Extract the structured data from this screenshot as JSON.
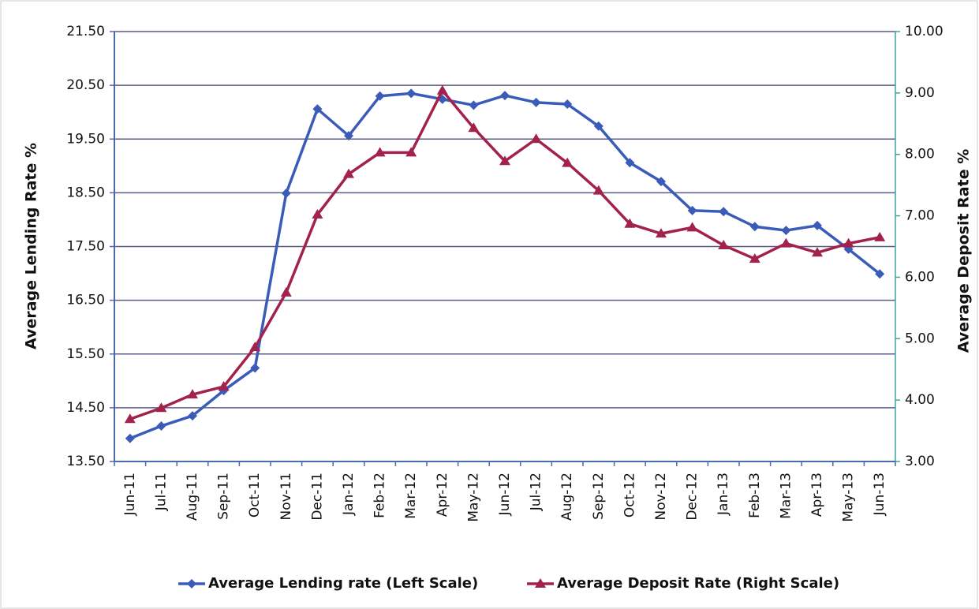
{
  "chart_data": {
    "type": "line",
    "y_label": "Average Lending Rate %",
    "y2_label": "Average Deposit Rate %",
    "categories": [
      "Jun-11",
      "Jul-11",
      "Aug-11",
      "Sep-11",
      "Oct-11",
      "Nov-11",
      "Dec-11",
      "Jan-12",
      "Feb-12",
      "Mar-12",
      "Apr-12",
      "May-12",
      "Jun-12",
      "Jul-12",
      "Aug-12",
      "Sep-12",
      "Oct-12",
      "Nov-12",
      "Dec-12",
      "Jan-13",
      "Feb-13",
      "Mar-13",
      "Apr-13",
      "May-13",
      "Jun-13"
    ],
    "series": [
      {
        "name": "Average Lending rate (Left Scale)",
        "color": "#3a5cb8",
        "marker": "diamond",
        "values": [
          13.93,
          14.16,
          14.35,
          14.82,
          15.24,
          18.49,
          20.06,
          19.56,
          20.3,
          20.35,
          20.24,
          20.13,
          20.31,
          20.18,
          20.15,
          19.74,
          19.06,
          18.71,
          18.17,
          18.15,
          17.87,
          17.8,
          17.89,
          17.45,
          16.99
        ]
      },
      {
        "name": "Average Deposit Rate (Right Scale)",
        "color": "#a3224c",
        "marker": "triangle",
        "axis": "y2",
        "values": [
          3.69,
          3.87,
          4.09,
          4.22,
          4.86,
          5.75,
          7.02,
          7.68,
          8.03,
          8.03,
          9.04,
          8.43,
          7.89,
          8.25,
          7.86,
          7.41,
          6.87,
          6.71,
          6.81,
          6.52,
          6.3,
          6.55,
          6.4,
          6.55,
          6.65
        ]
      }
    ],
    "ylim": [
      13.5,
      21.5
    ],
    "yticks": [
      {
        "value": 13.5,
        "label": "13.50"
      },
      {
        "value": 14.5,
        "label": "14.50"
      },
      {
        "value": 15.5,
        "label": "15.50"
      },
      {
        "value": 16.5,
        "label": "16.50"
      },
      {
        "value": 17.5,
        "label": "17.50"
      },
      {
        "value": 18.5,
        "label": "18.50"
      },
      {
        "value": 19.5,
        "label": "19.50"
      },
      {
        "value": 20.5,
        "label": "20.50"
      },
      {
        "value": 21.5,
        "label": "21.50"
      }
    ],
    "y2lim": [
      3,
      10
    ],
    "y2ticks": [
      {
        "value": 3,
        "label": "3.00"
      },
      {
        "value": 4,
        "label": "4.00"
      },
      {
        "value": 5,
        "label": "5.00"
      },
      {
        "value": 6,
        "label": "6.00"
      },
      {
        "value": 7,
        "label": "7.00"
      },
      {
        "value": 8,
        "label": "8.00"
      },
      {
        "value": 9,
        "label": "9.00"
      },
      {
        "value": 10,
        "label": "10.00"
      }
    ],
    "grid": true,
    "legend": "bottom"
  }
}
